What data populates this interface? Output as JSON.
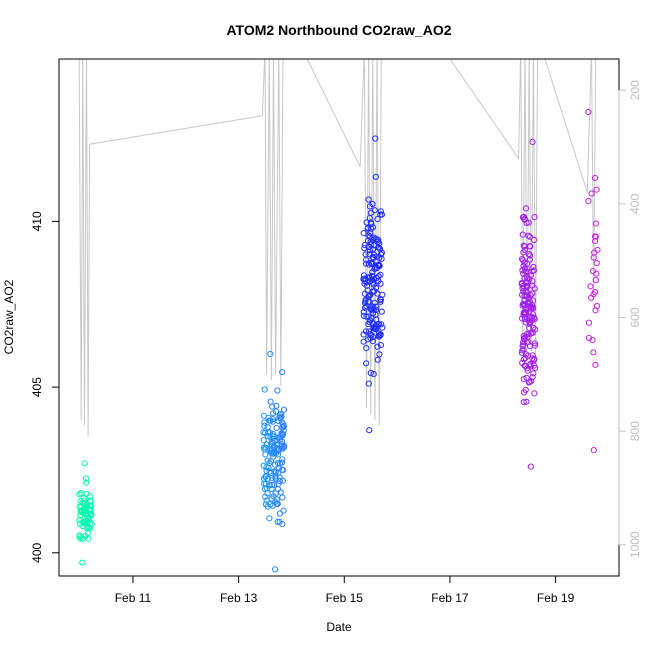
{
  "chart_data": {
    "type": "scatter",
    "title": "ATOM2 Northbound CO2raw_AO2",
    "xlabel": "Date",
    "ylabel": "CO2raw_AO2",
    "x_ticks": [
      "Feb 11",
      "Feb 13",
      "Feb 15",
      "Feb 17",
      "Feb 19"
    ],
    "x_tick_days": [
      11,
      13,
      15,
      17,
      19
    ],
    "xlim_days": [
      9.6,
      20.2
    ],
    "ylim": [
      399.3,
      414.9
    ],
    "y_ticks": [
      "400",
      "405",
      "410"
    ],
    "y_tick_values": [
      400,
      405,
      410
    ],
    "secondary_axis": {
      "side": "right",
      "color": "#bfbfbf",
      "ticks": [
        "200",
        "400",
        "600",
        "800",
        "1000"
      ],
      "tick_values": [
        200,
        400,
        600,
        800,
        1000
      ],
      "lim": [
        1055,
        145
      ],
      "series_type": "line"
    },
    "point_style": "open-circle",
    "color_gradient": [
      "#00ffaa",
      "#00e8e0",
      "#00bfff",
      "#3a6bff",
      "#1e2bff",
      "#6a20f0",
      "#a020f0",
      "#d020e0"
    ],
    "clusters": [
      {
        "x_start": 9.98,
        "x_end": 10.22,
        "y_min": 399.7,
        "y_max": 402.7,
        "count": 70
      },
      {
        "x_start": 13.46,
        "x_end": 13.86,
        "y_min": 399.5,
        "y_max": 406.0,
        "count": 150
      },
      {
        "x_start": 15.36,
        "x_end": 15.72,
        "y_min": 403.7,
        "y_max": 412.5,
        "count": 170
      },
      {
        "x_start": 18.36,
        "x_end": 18.62,
        "y_min": 402.6,
        "y_max": 412.4,
        "count": 160
      },
      {
        "x_start": 19.62,
        "x_end": 19.8,
        "y_min": 403.1,
        "y_max": 413.3,
        "count": 28
      }
    ],
    "secondary_series": [
      {
        "day": 9.98,
        "value": 125
      },
      {
        "day": 10.02,
        "value": 780
      },
      {
        "day": 10.05,
        "value": 125
      },
      {
        "day": 10.08,
        "value": 790
      },
      {
        "day": 10.12,
        "value": 125
      },
      {
        "day": 10.15,
        "value": 810
      },
      {
        "day": 10.18,
        "value": 295
      },
      {
        "day": 13.45,
        "value": 245
      },
      {
        "day": 13.5,
        "value": 125
      },
      {
        "day": 13.53,
        "value": 700
      },
      {
        "day": 13.58,
        "value": 125
      },
      {
        "day": 13.62,
        "value": 710
      },
      {
        "day": 13.66,
        "value": 125
      },
      {
        "day": 13.7,
        "value": 700
      },
      {
        "day": 13.76,
        "value": 125
      },
      {
        "day": 13.8,
        "value": 720
      },
      {
        "day": 13.84,
        "value": 125
      },
      {
        "day": 14.3,
        "value": 145
      },
      {
        "day": 15.3,
        "value": 335
      },
      {
        "day": 15.38,
        "value": 125
      },
      {
        "day": 15.42,
        "value": 760
      },
      {
        "day": 15.46,
        "value": 125
      },
      {
        "day": 15.5,
        "value": 770
      },
      {
        "day": 15.54,
        "value": 125
      },
      {
        "day": 15.58,
        "value": 780
      },
      {
        "day": 15.62,
        "value": 125
      },
      {
        "day": 15.66,
        "value": 790
      },
      {
        "day": 15.7,
        "value": 125
      },
      {
        "day": 17.0,
        "value": 145
      },
      {
        "day": 18.3,
        "value": 320
      },
      {
        "day": 18.34,
        "value": 125
      },
      {
        "day": 18.38,
        "value": 640
      },
      {
        "day": 18.42,
        "value": 125
      },
      {
        "day": 18.46,
        "value": 650
      },
      {
        "day": 18.5,
        "value": 125
      },
      {
        "day": 18.54,
        "value": 660
      },
      {
        "day": 18.58,
        "value": 125
      },
      {
        "day": 18.62,
        "value": 680
      },
      {
        "day": 18.66,
        "value": 125
      },
      {
        "day": 18.8,
        "value": 145
      },
      {
        "day": 19.6,
        "value": 380
      },
      {
        "day": 19.68,
        "value": 125
      },
      {
        "day": 19.72,
        "value": 560
      },
      {
        "day": 19.76,
        "value": 125
      }
    ],
    "grid": false,
    "legend": "none"
  }
}
